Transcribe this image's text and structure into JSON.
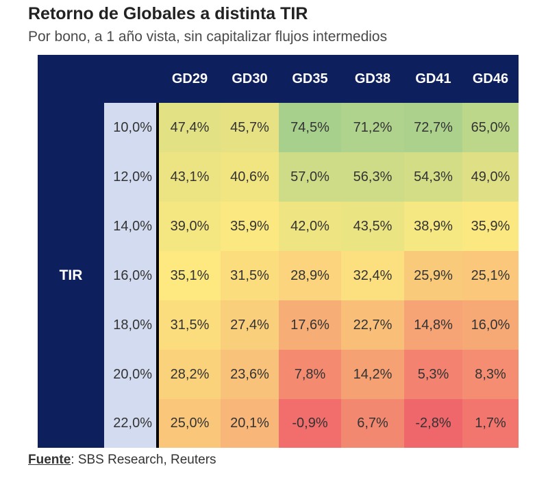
{
  "chart_data": {
    "type": "heatmap",
    "title": "Retorno de Globales a distinta TIR",
    "subtitle": "Por bono, a 1 año vista, sin capitalizar flujos intermedios",
    "row_axis_label": "TIR",
    "columns": [
      "GD29",
      "GD30",
      "GD35",
      "GD38",
      "GD41",
      "GD46"
    ],
    "rows": [
      "10,0%",
      "12,0%",
      "14,0%",
      "16,0%",
      "18,0%",
      "20,0%",
      "22,0%"
    ],
    "values": [
      [
        47.4,
        45.7,
        74.5,
        71.2,
        72.7,
        65.0
      ],
      [
        43.1,
        40.6,
        57.0,
        56.3,
        54.3,
        49.0
      ],
      [
        39.0,
        35.9,
        42.0,
        43.5,
        38.9,
        35.9
      ],
      [
        35.1,
        31.5,
        28.9,
        32.4,
        25.9,
        25.1
      ],
      [
        31.5,
        27.4,
        17.6,
        22.7,
        14.8,
        16.0
      ],
      [
        28.2,
        23.6,
        7.8,
        14.2,
        5.3,
        8.3
      ],
      [
        25.0,
        20.1,
        -0.9,
        6.7,
        -2.8,
        1.7
      ]
    ],
    "labels": [
      [
        "47,4%",
        "45,7%",
        "74,5%",
        "71,2%",
        "72,7%",
        "65,0%"
      ],
      [
        "43,1%",
        "40,6%",
        "57,0%",
        "56,3%",
        "54,3%",
        "49,0%"
      ],
      [
        "39,0%",
        "35,9%",
        "42,0%",
        "43,5%",
        "38,9%",
        "35,9%"
      ],
      [
        "35,1%",
        "31,5%",
        "28,9%",
        "32,4%",
        "25,9%",
        "25,1%"
      ],
      [
        "31,5%",
        "27,4%",
        "17,6%",
        "22,7%",
        "14,8%",
        "16,0%"
      ],
      [
        "28,2%",
        "23,6%",
        "7,8%",
        "14,2%",
        "5,3%",
        "8,3%"
      ],
      [
        "25,0%",
        "20,1%",
        "-0,9%",
        "6,7%",
        "-2,8%",
        "1,7%"
      ]
    ],
    "color_scale": {
      "low": "#f0676b",
      "mid": "#fde980",
      "high": "#a8d08d",
      "domain": [
        -2.8,
        35,
        74.5
      ]
    }
  },
  "source": {
    "key": "Fuente",
    "text": ": SBS Research, Reuters"
  },
  "colors": {
    "header_bg": "#0d1f5c",
    "row_label_bg": "#d3dbf0"
  }
}
